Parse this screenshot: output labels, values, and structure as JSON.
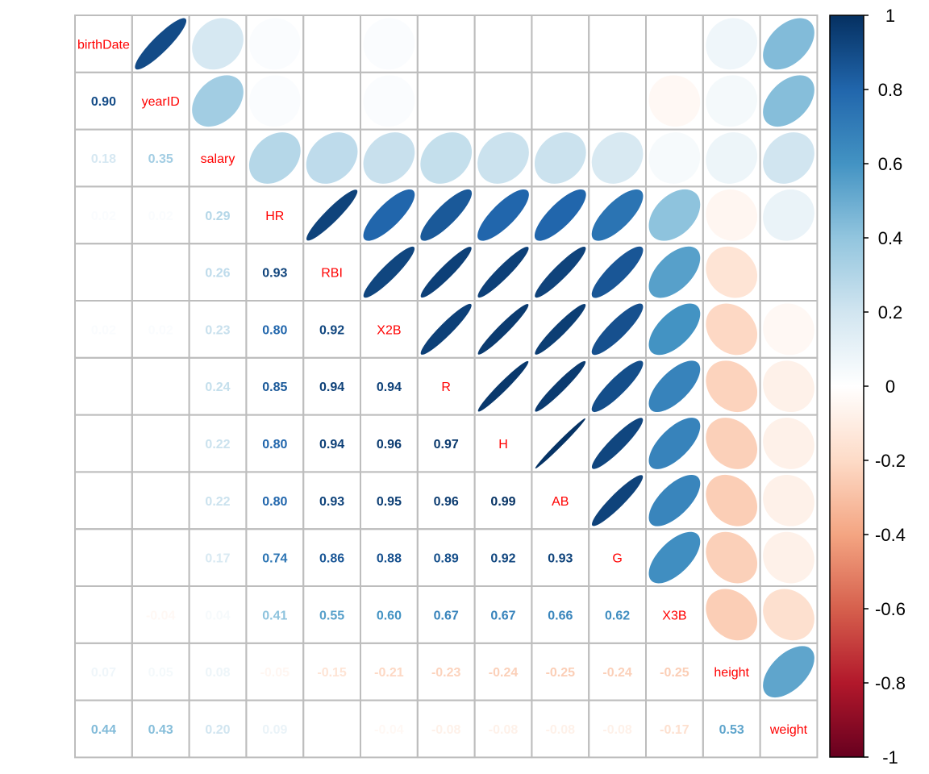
{
  "chart_data": {
    "type": "heatmap",
    "variables": [
      "birthDate",
      "yearID",
      "salary",
      "HR",
      "RBI",
      "X2B",
      "R",
      "H",
      "AB",
      "G",
      "X3B",
      "height",
      "weight"
    ],
    "lower_method": "number",
    "upper_method": "ellipse",
    "correlations": [
      [
        1.0,
        0.9,
        0.18,
        0.02,
        0.0,
        0.02,
        0.0,
        0.0,
        0.0,
        0.0,
        0.0,
        0.07,
        0.44
      ],
      [
        0.9,
        1.0,
        0.35,
        0.02,
        0.0,
        0.02,
        0.0,
        0.0,
        0.0,
        0.0,
        -0.04,
        0.05,
        0.43
      ],
      [
        0.18,
        0.35,
        1.0,
        0.29,
        0.26,
        0.23,
        0.24,
        0.22,
        0.22,
        0.17,
        0.04,
        0.08,
        0.2
      ],
      [
        0.02,
        0.02,
        0.29,
        1.0,
        0.93,
        0.8,
        0.85,
        0.8,
        0.8,
        0.74,
        0.41,
        -0.05,
        0.09
      ],
      [
        0.0,
        0.0,
        0.26,
        0.93,
        1.0,
        0.92,
        0.94,
        0.94,
        0.93,
        0.86,
        0.55,
        -0.15,
        0.0
      ],
      [
        0.02,
        0.02,
        0.23,
        0.8,
        0.92,
        1.0,
        0.94,
        0.96,
        0.95,
        0.88,
        0.6,
        -0.21,
        -0.04
      ],
      [
        0.0,
        0.0,
        0.24,
        0.85,
        0.94,
        0.94,
        1.0,
        0.97,
        0.96,
        0.89,
        0.67,
        -0.23,
        -0.08
      ],
      [
        0.0,
        0.0,
        0.22,
        0.8,
        0.94,
        0.96,
        0.97,
        1.0,
        0.99,
        0.92,
        0.67,
        -0.24,
        -0.08
      ],
      [
        0.0,
        0.0,
        0.22,
        0.8,
        0.93,
        0.95,
        0.96,
        0.99,
        1.0,
        0.93,
        0.66,
        -0.25,
        -0.08
      ],
      [
        0.0,
        0.0,
        0.17,
        0.74,
        0.86,
        0.88,
        0.89,
        0.92,
        0.93,
        1.0,
        0.62,
        -0.24,
        -0.08
      ],
      [
        0.0,
        -0.04,
        0.04,
        0.41,
        0.55,
        0.6,
        0.67,
        0.67,
        0.66,
        0.62,
        1.0,
        -0.25,
        -0.17
      ],
      [
        0.07,
        0.05,
        0.08,
        -0.05,
        -0.15,
        -0.21,
        -0.23,
        -0.24,
        -0.25,
        -0.24,
        -0.25,
        1.0,
        0.53
      ],
      [
        0.44,
        0.43,
        0.2,
        0.09,
        0.0,
        -0.04,
        -0.08,
        -0.08,
        -0.08,
        -0.08,
        -0.17,
        0.53,
        1.0
      ]
    ],
    "lower_labels": [
      [
        "",
        "",
        "",
        "",
        "",
        "",
        "",
        "",
        "",
        "",
        "",
        "",
        ""
      ],
      [
        "0.90",
        "",
        "",
        "",
        "",
        "",
        "",
        "",
        "",
        "",
        "",
        "",
        ""
      ],
      [
        "0.18",
        "0.35",
        "",
        "",
        "",
        "",
        "",
        "",
        "",
        "",
        "",
        "",
        ""
      ],
      [
        "0.02",
        "0.02",
        "0.29",
        "",
        "",
        "",
        "",
        "",
        "",
        "",
        "",
        "",
        ""
      ],
      [
        "",
        "",
        "0.26",
        "0.93",
        "",
        "",
        "",
        "",
        "",
        "",
        "",
        "",
        ""
      ],
      [
        "0.02",
        "0.02",
        "0.23",
        "0.80",
        "0.92",
        "",
        "",
        "",
        "",
        "",
        "",
        "",
        ""
      ],
      [
        "",
        "",
        "0.24",
        "0.85",
        "0.94",
        "0.94",
        "",
        "",
        "",
        "",
        "",
        "",
        ""
      ],
      [
        "",
        "",
        "0.22",
        "0.80",
        "0.94",
        "0.96",
        "0.97",
        "",
        "",
        "",
        "",
        "",
        ""
      ],
      [
        "",
        "",
        "0.22",
        "0.80",
        "0.93",
        "0.95",
        "0.96",
        "0.99",
        "",
        "",
        "",
        "",
        ""
      ],
      [
        "",
        "",
        "0.17",
        "0.74",
        "0.86",
        "0.88",
        "0.89",
        "0.92",
        "0.93",
        "",
        "",
        "",
        ""
      ],
      [
        "",
        "-0.04",
        "0.04",
        "0.41",
        "0.55",
        "0.60",
        "0.67",
        "0.67",
        "0.66",
        "0.62",
        "",
        "",
        ""
      ],
      [
        "0.07",
        "0.05",
        "0.08",
        "-0.05",
        "-0.15",
        "-0.21",
        "-0.23",
        "-0.24",
        "-0.25",
        "-0.24",
        "-0.25",
        "",
        ""
      ],
      [
        "0.44",
        "0.43",
        "0.20",
        "0.09",
        "",
        "-0.04",
        "-0.08",
        "-0.08",
        "-0.08",
        "-0.08",
        "-0.17",
        "0.53",
        ""
      ]
    ],
    "colorbar": {
      "range": [
        -1,
        1
      ],
      "ticks": [
        1,
        0.8,
        0.6,
        0.4,
        0.2,
        0,
        -0.2,
        -0.4,
        -0.6,
        -0.8,
        -1
      ],
      "tick_labels": [
        "1",
        "0.8",
        "0.6",
        "0.4",
        "0.2",
        "0",
        "-0.2",
        "-0.4",
        "-0.6",
        "-0.8",
        "-1"
      ],
      "placement": "right"
    },
    "palette": [
      "#67001F",
      "#B2182B",
      "#D6604D",
      "#F4A582",
      "#FDDBC7",
      "#FFFFFF",
      "#D1E5F0",
      "#92C5DE",
      "#4393C3",
      "#2166AC",
      "#053061"
    ],
    "diag_label_color": "#FF0000",
    "grid_color": "#BDBDBD"
  }
}
